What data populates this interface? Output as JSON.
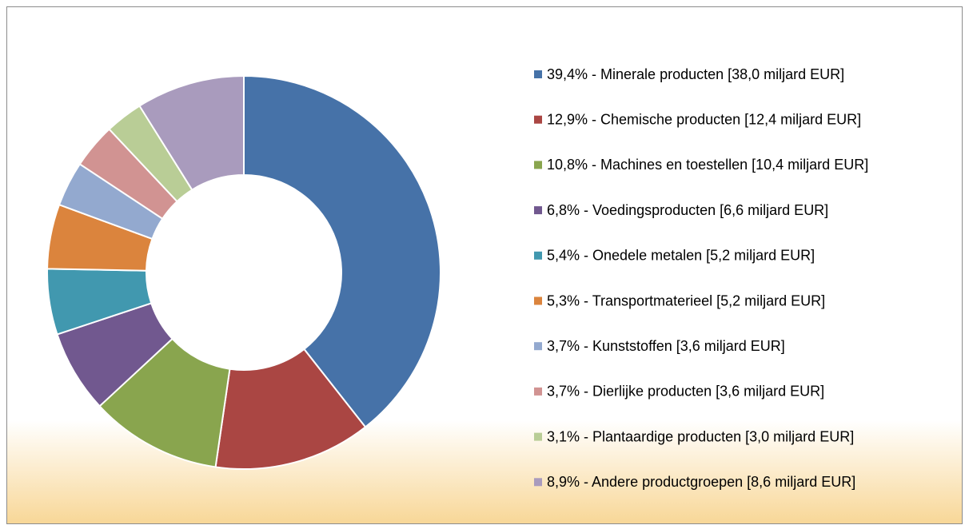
{
  "chart_data": {
    "type": "donut",
    "categories": [
      "39,4% - Minerale producten [38,0 miljard EUR]",
      "12,9% - Chemische producten [12,4 miljard EUR]",
      "10,8% - Machines en toestellen [10,4 miljard EUR]",
      "6,8% - Voedingsproducten [6,6 miljard EUR]",
      "5,4% - Onedele metalen [5,2 miljard EUR]",
      "5,3% - Transportmaterieel [5,2 miljard EUR]",
      "3,7% - Kunststoffen [3,6 miljard EUR]",
      "3,7% - Dierlijke producten [3,6 miljard EUR]",
      "3,1% - Plantaardige producten [3,0 miljard EUR]",
      "8,9% - Andere productgroepen [8,6 miljard EUR]"
    ],
    "values": [
      39.4,
      12.9,
      10.8,
      6.8,
      5.4,
      5.3,
      3.7,
      3.7,
      3.1,
      8.9
    ],
    "colors": [
      "#4672a8",
      "#aa4643",
      "#89a54e",
      "#71588f",
      "#4198af",
      "#db843d",
      "#93a9cf",
      "#d19392",
      "#b9cd96",
      "#a99bbd"
    ],
    "legend": "right"
  }
}
